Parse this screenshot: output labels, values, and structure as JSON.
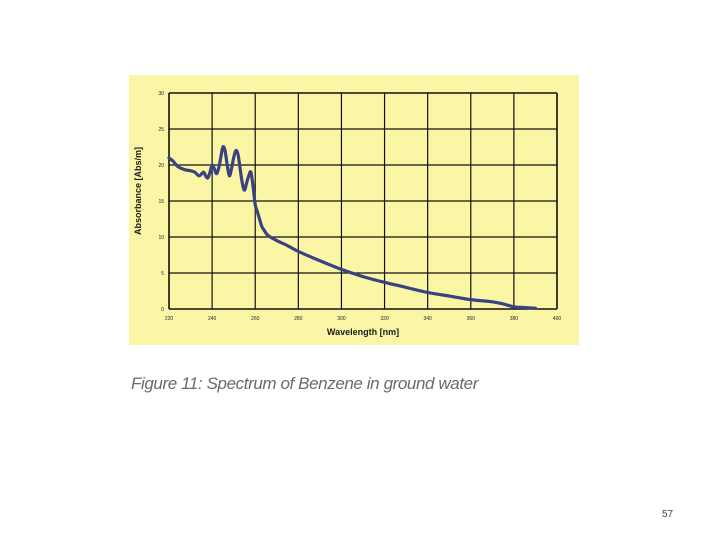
{
  "caption": "Figure 11: Spectrum of Benzene in ground water",
  "page_number": "57",
  "colors": {
    "panel_background": "#fbf6a6",
    "line": "#3a4282",
    "grid": "#111111"
  },
  "chart_data": {
    "type": "line",
    "title": "",
    "xlabel": "Wavelength [nm]",
    "ylabel": "Absorbance [Abs/m]",
    "xlim": [
      220,
      400
    ],
    "ylim": [
      0,
      30
    ],
    "x_ticks": [
      "220",
      "240",
      "260",
      "280",
      "300",
      "320",
      "340",
      "360",
      "380",
      "400"
    ],
    "y_ticks": [
      "0",
      "5",
      "10",
      "15",
      "20",
      "25",
      "30"
    ],
    "grid": true,
    "legend": "none",
    "series": [
      {
        "x": [
          220,
          222,
          224,
          226,
          228,
          230,
          232,
          234,
          236,
          237,
          238,
          239,
          240,
          241,
          242,
          243,
          244,
          245,
          246,
          247,
          248,
          249,
          250,
          251,
          252,
          253,
          254,
          255,
          256,
          257,
          258,
          259,
          260,
          261,
          262,
          263,
          264,
          266,
          270,
          275,
          280,
          290,
          300,
          310,
          320,
          330,
          340,
          350,
          360,
          370,
          375,
          380,
          385,
          390
        ],
        "y": [
          21,
          20.5,
          19.8,
          19.5,
          19.3,
          19.2,
          19.0,
          18.5,
          19.0,
          18.5,
          18.2,
          19.0,
          20.0,
          19.5,
          18.8,
          19.5,
          21.0,
          22.5,
          22.0,
          20.0,
          18.5,
          19.5,
          21.0,
          22.0,
          21.5,
          19.5,
          17.5,
          16.5,
          17.5,
          18.5,
          19.0,
          17.0,
          14.5,
          13.5,
          12.5,
          11.5,
          11.0,
          10.2,
          9.5,
          8.8,
          8.0,
          6.7,
          5.5,
          4.5,
          3.7,
          3.0,
          2.3,
          1.8,
          1.3,
          1.0,
          0.7,
          0.3,
          0.2,
          0.1
        ]
      }
    ]
  }
}
